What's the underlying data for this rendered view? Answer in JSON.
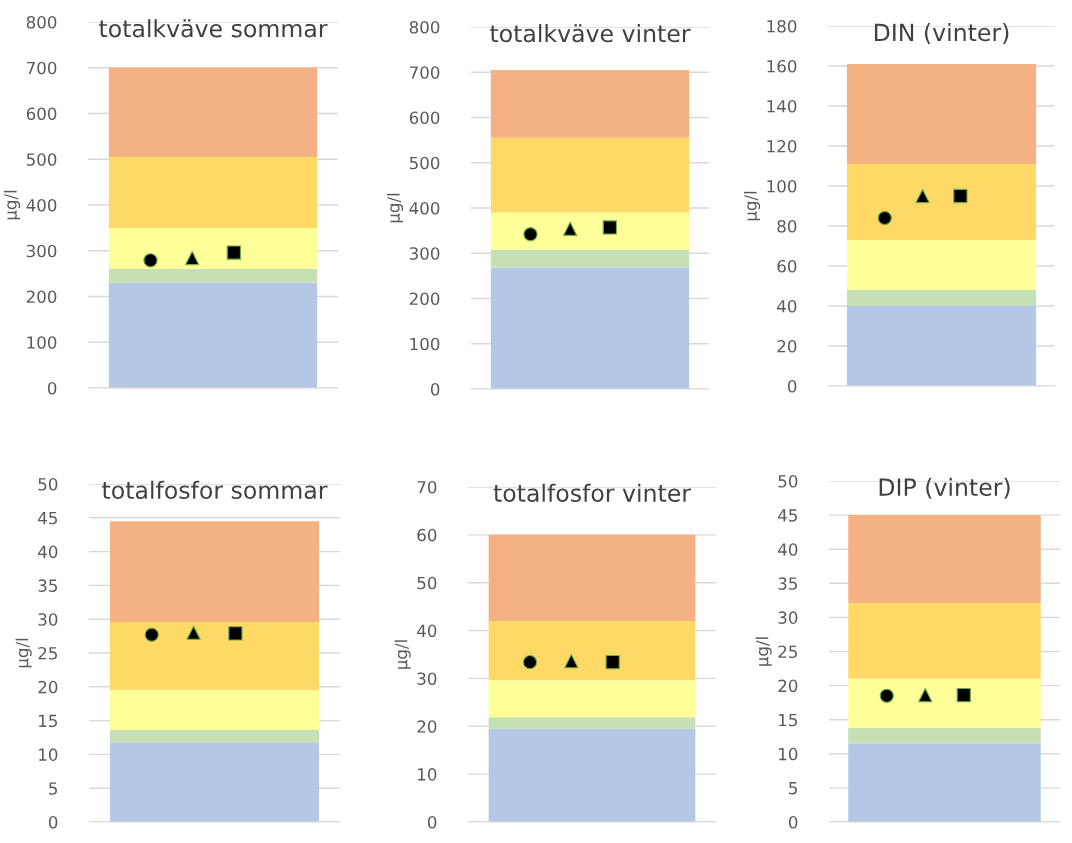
{
  "chart_data": [
    {
      "type": "area",
      "stacked": true,
      "title": "totalkväve sommar",
      "ylabel": "µg/l",
      "categories": [
        null,
        null,
        null,
        null,
        null,
        null
      ],
      "ylim": [
        0,
        800
      ],
      "yticks": [
        0,
        100,
        200,
        300,
        400,
        500,
        600,
        700,
        800
      ],
      "grid": "y",
      "series": [
        {
          "color": "#b4c7e7",
          "values": [
            230,
            230,
            230,
            230,
            230,
            230
          ]
        },
        {
          "color": "#c5e0b4",
          "values": [
            30,
            30,
            30,
            30,
            30,
            30
          ]
        },
        {
          "color": "#ffff99",
          "values": [
            90,
            90,
            90,
            90,
            90,
            90
          ]
        },
        {
          "color": "#ffd966",
          "values": [
            155,
            155,
            155,
            155,
            155,
            155
          ]
        },
        {
          "color": "#f4b183",
          "values": [
            195,
            195,
            195,
            195,
            195,
            195
          ]
        },
        {
          "type": "scatter",
          "marker": "circle",
          "color": "#000000",
          "values": [
            null,
            279,
            null,
            null,
            null,
            null
          ]
        },
        {
          "type": "scatter",
          "marker": "triangle",
          "color": "#000000",
          "values": [
            null,
            null,
            284,
            null,
            null,
            null
          ]
        },
        {
          "type": "scatter",
          "marker": "square",
          "color": "#000000",
          "values": [
            null,
            null,
            null,
            296,
            null,
            null
          ]
        }
      ]
    },
    {
      "type": "area",
      "stacked": true,
      "title": "totalkväve vinter",
      "ylabel": "µg/l",
      "categories": [
        null,
        null,
        null,
        null,
        null,
        null
      ],
      "ylim": [
        0,
        800
      ],
      "yticks": [
        0,
        100,
        200,
        300,
        400,
        500,
        600,
        700,
        800
      ],
      "grid": "y",
      "series": [
        {
          "color": "#b4c7e7",
          "values": [
            268,
            268,
            268,
            268,
            268,
            268
          ]
        },
        {
          "color": "#c5e0b4",
          "values": [
            40,
            40,
            40,
            40,
            40,
            40
          ]
        },
        {
          "color": "#ffff99",
          "values": [
            82,
            82,
            82,
            82,
            82,
            82
          ]
        },
        {
          "color": "#ffd966",
          "values": [
            165,
            165,
            165,
            165,
            165,
            165
          ]
        },
        {
          "color": "#f4b183",
          "values": [
            150,
            150,
            150,
            150,
            150,
            150
          ]
        },
        {
          "type": "scatter",
          "marker": "circle",
          "color": "#000000",
          "values": [
            null,
            342,
            null,
            null,
            null,
            null
          ]
        },
        {
          "type": "scatter",
          "marker": "triangle",
          "color": "#000000",
          "values": [
            null,
            null,
            354,
            null,
            null,
            null
          ]
        },
        {
          "type": "scatter",
          "marker": "square",
          "color": "#000000",
          "values": [
            null,
            null,
            null,
            357,
            null,
            null
          ]
        }
      ]
    },
    {
      "type": "area",
      "stacked": true,
      "title": "DIN (vinter)",
      "ylabel": "µg/l",
      "categories": [
        null,
        null,
        null,
        null,
        null,
        null
      ],
      "ylim": [
        0,
        180
      ],
      "yticks": [
        0,
        20,
        40,
        60,
        80,
        100,
        120,
        140,
        160,
        180
      ],
      "grid": "y",
      "series": [
        {
          "color": "#b4c7e7",
          "values": [
            40,
            40,
            40,
            40,
            40,
            40
          ]
        },
        {
          "color": "#c5e0b4",
          "values": [
            8,
            8,
            8,
            8,
            8,
            8
          ]
        },
        {
          "color": "#ffff99",
          "values": [
            25,
            25,
            25,
            25,
            25,
            25
          ]
        },
        {
          "color": "#ffd966",
          "values": [
            38,
            38,
            38,
            38,
            38,
            38
          ]
        },
        {
          "color": "#f4b183",
          "values": [
            50,
            50,
            50,
            50,
            50,
            50
          ]
        },
        {
          "type": "scatter",
          "marker": "circle",
          "color": "#000000",
          "values": [
            null,
            84,
            null,
            null,
            null,
            null
          ]
        },
        {
          "type": "scatter",
          "marker": "triangle",
          "color": "#000000",
          "values": [
            null,
            null,
            95,
            null,
            null,
            null
          ]
        },
        {
          "type": "scatter",
          "marker": "square",
          "color": "#000000",
          "values": [
            null,
            null,
            null,
            95,
            null,
            null
          ]
        }
      ]
    },
    {
      "type": "area",
      "stacked": true,
      "title": "totalfosfor sommar",
      "ylabel": "µg/l",
      "categories": [
        null,
        null,
        null,
        null,
        null,
        null
      ],
      "ylim": [
        0,
        50
      ],
      "yticks": [
        0,
        5,
        10,
        15,
        20,
        25,
        30,
        35,
        40,
        45,
        50
      ],
      "grid": "y",
      "series": [
        {
          "color": "#b4c7e7",
          "values": [
            11.8,
            11.8,
            11.8,
            11.8,
            11.8,
            11.8
          ]
        },
        {
          "color": "#c5e0b4",
          "values": [
            1.8,
            1.8,
            1.8,
            1.8,
            1.8,
            1.8
          ]
        },
        {
          "color": "#ffff99",
          "values": [
            5.9,
            5.9,
            5.9,
            5.9,
            5.9,
            5.9
          ]
        },
        {
          "color": "#ffd966",
          "values": [
            10.1,
            10.1,
            10.1,
            10.1,
            10.1,
            10.1
          ]
        },
        {
          "color": "#f4b183",
          "values": [
            14.9,
            14.9,
            14.9,
            14.9,
            14.9,
            14.9
          ]
        },
        {
          "type": "scatter",
          "marker": "circle",
          "color": "#000000",
          "values": [
            null,
            27.7,
            null,
            null,
            null,
            null
          ]
        },
        {
          "type": "scatter",
          "marker": "triangle",
          "color": "#000000",
          "values": [
            null,
            null,
            28,
            null,
            null,
            null
          ]
        },
        {
          "type": "scatter",
          "marker": "square",
          "color": "#000000",
          "values": [
            null,
            null,
            null,
            27.9,
            null,
            null
          ]
        }
      ]
    },
    {
      "type": "area",
      "stacked": true,
      "title": "totalfosfor vinter",
      "ylabel": "µg/l",
      "categories": [
        null,
        null,
        null,
        null,
        null,
        null
      ],
      "ylim": [
        0,
        70
      ],
      "yticks": [
        0,
        10,
        20,
        30,
        40,
        50,
        60,
        70
      ],
      "grid": "y",
      "series": [
        {
          "color": "#b4c7e7",
          "values": [
            19.5,
            19.5,
            19.5,
            19.5,
            19.5,
            19.5
          ]
        },
        {
          "color": "#c5e0b4",
          "values": [
            2.4,
            2.4,
            2.4,
            2.4,
            2.4,
            2.4
          ]
        },
        {
          "color": "#ffff99",
          "values": [
            7.7,
            7.7,
            7.7,
            7.7,
            7.7,
            7.7
          ]
        },
        {
          "color": "#ffd966",
          "values": [
            12.4,
            12.4,
            12.4,
            12.4,
            12.4,
            12.4
          ]
        },
        {
          "color": "#f4b183",
          "values": [
            18,
            18,
            18,
            18,
            18,
            18
          ]
        },
        {
          "type": "scatter",
          "marker": "circle",
          "color": "#000000",
          "values": [
            null,
            33.4,
            null,
            null,
            null,
            null
          ]
        },
        {
          "type": "scatter",
          "marker": "triangle",
          "color": "#000000",
          "values": [
            null,
            null,
            33.6,
            null,
            null,
            null
          ]
        },
        {
          "type": "scatter",
          "marker": "square",
          "color": "#000000",
          "values": [
            null,
            null,
            null,
            33.4,
            null,
            null
          ]
        }
      ]
    },
    {
      "type": "area",
      "stacked": true,
      "title": "DIP (vinter)",
      "ylabel": "µg/l",
      "categories": [
        null,
        null,
        null,
        null,
        null,
        null
      ],
      "ylim": [
        0,
        50
      ],
      "yticks": [
        0,
        5,
        10,
        15,
        20,
        25,
        30,
        35,
        40,
        45,
        50
      ],
      "grid": "y",
      "series": [
        {
          "color": "#b4c7e7",
          "values": [
            11.5,
            11.5,
            11.5,
            11.5,
            11.5,
            11.5
          ]
        },
        {
          "color": "#c5e0b4",
          "values": [
            2.3,
            2.3,
            2.3,
            2.3,
            2.3,
            2.3
          ]
        },
        {
          "color": "#ffff99",
          "values": [
            7.2,
            7.2,
            7.2,
            7.2,
            7.2,
            7.2
          ]
        },
        {
          "color": "#ffd966",
          "values": [
            11.1,
            11.1,
            11.1,
            11.1,
            11.1,
            11.1
          ]
        },
        {
          "color": "#f4b183",
          "values": [
            12.9,
            12.9,
            12.9,
            12.9,
            12.9,
            12.9
          ]
        },
        {
          "type": "scatter",
          "marker": "circle",
          "color": "#000000",
          "values": [
            null,
            18.5,
            null,
            null,
            null,
            null
          ]
        },
        {
          "type": "scatter",
          "marker": "triangle",
          "color": "#000000",
          "values": [
            null,
            null,
            18.6,
            null,
            null,
            null
          ]
        },
        {
          "type": "scatter",
          "marker": "square",
          "color": "#000000",
          "values": [
            null,
            null,
            null,
            18.6,
            null,
            null
          ]
        }
      ]
    }
  ]
}
